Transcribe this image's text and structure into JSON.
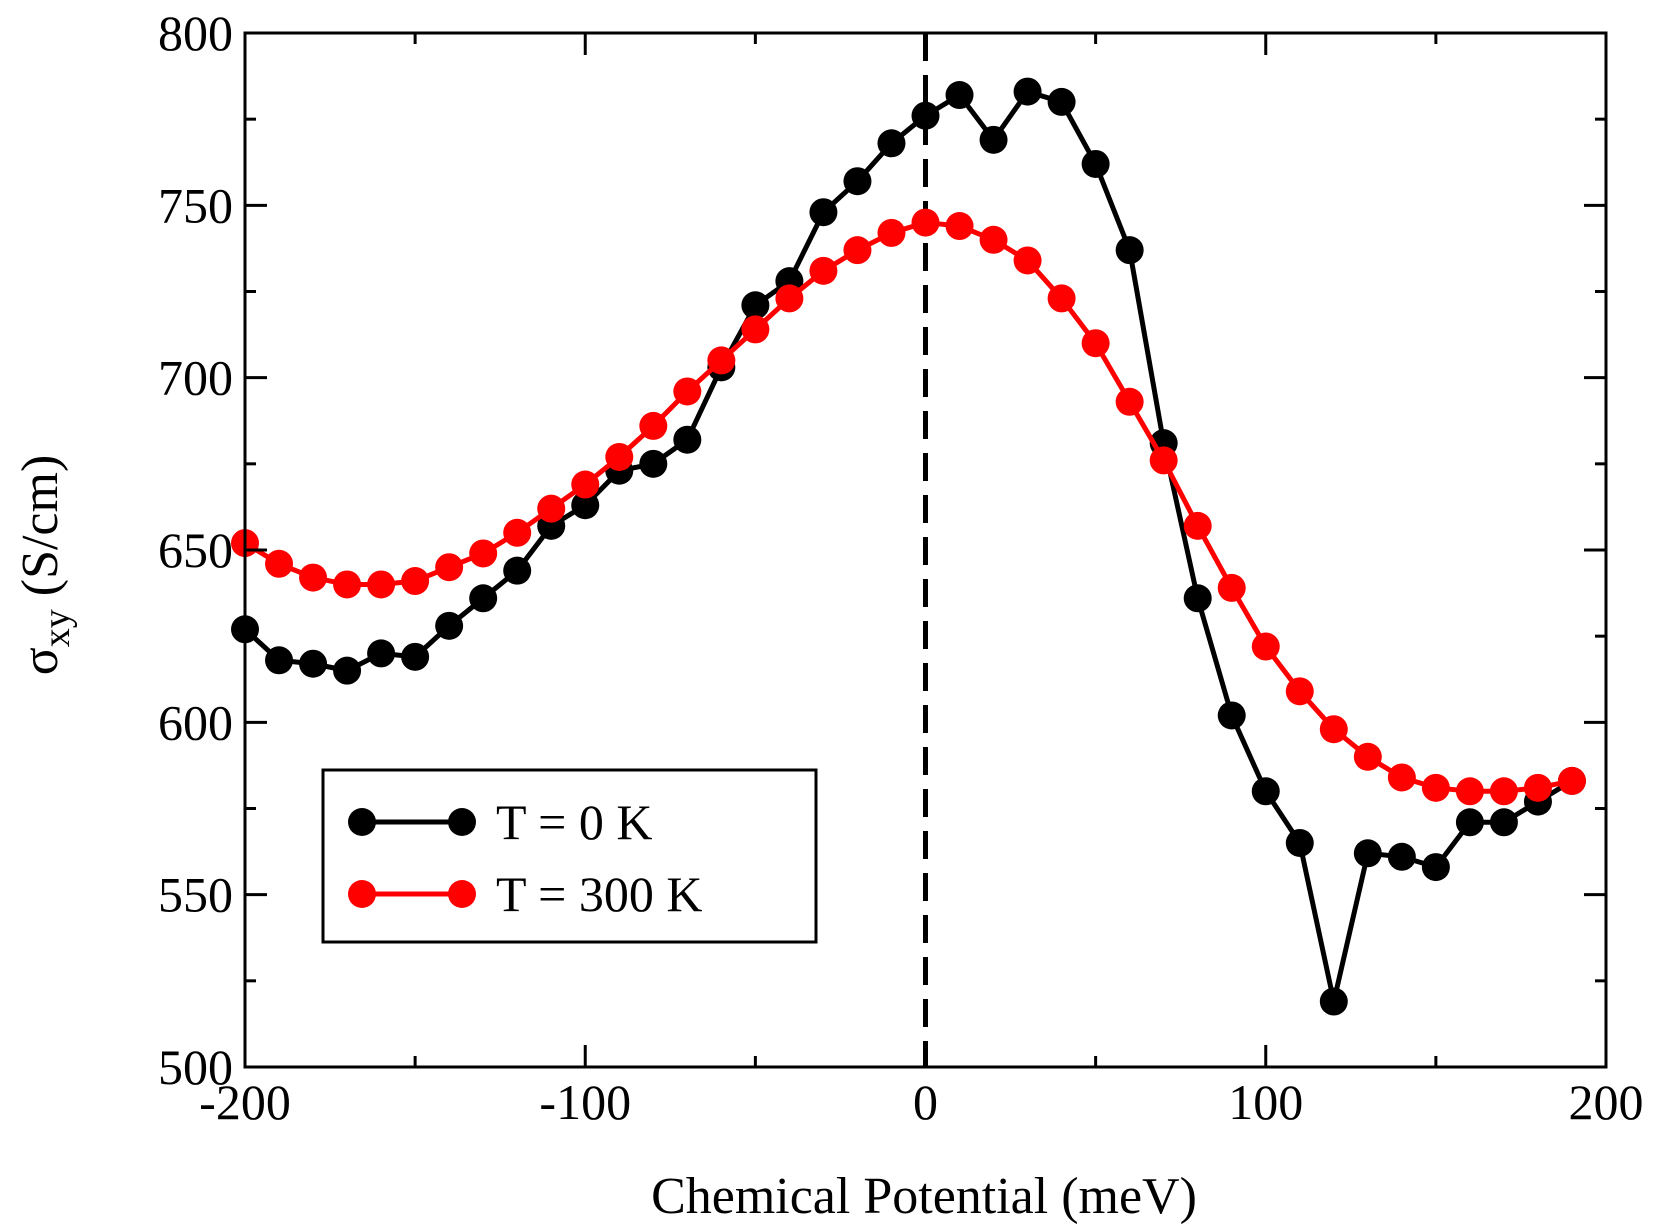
{
  "chart_data": {
    "type": "line",
    "title": "",
    "xlabel": "Chemical Potential (meV)",
    "ylabel": {
      "symbol": "σ",
      "subscript": "xy",
      "unit": " (S/cm)"
    },
    "xlim": [
      -200,
      200
    ],
    "ylim": [
      500,
      800
    ],
    "x_major_ticks": [
      -200,
      -100,
      0,
      100,
      200
    ],
    "x_tick_labels": [
      "-200",
      "-100",
      "0",
      "100",
      "200"
    ],
    "x_minor_step": 50,
    "y_major_ticks": [
      500,
      550,
      600,
      650,
      700,
      750,
      800
    ],
    "y_tick_labels": [
      "500",
      "550",
      "600",
      "650",
      "700",
      "750",
      "800"
    ],
    "y_minor_step": 25,
    "grid": false,
    "reference_line": {
      "x": 0,
      "style": "dashed",
      "color": "#000000"
    },
    "legend_position": "bottom-left",
    "x": [
      -200,
      -190,
      -180,
      -170,
      -160,
      -150,
      -140,
      -130,
      -120,
      -110,
      -100,
      -90,
      -80,
      -70,
      -60,
      -50,
      -40,
      -30,
      -20,
      -10,
      0,
      10,
      20,
      30,
      40,
      50,
      60,
      70,
      80,
      90,
      100,
      110,
      120,
      130,
      140,
      150,
      160,
      170,
      180,
      190
    ],
    "series": [
      {
        "name": "T = 0 K",
        "color": "#000000",
        "values": [
          627,
          618,
          617,
          615,
          620,
          619,
          628,
          636,
          644,
          657,
          663,
          673,
          675,
          682,
          703,
          721,
          728,
          748,
          757,
          768,
          776,
          782,
          769,
          783,
          780,
          762,
          737,
          681,
          636,
          602,
          580,
          565,
          519,
          562,
          561,
          558,
          571,
          571,
          577,
          583
        ]
      },
      {
        "name": "T = 300 K",
        "color": "#ff0000",
        "values": [
          652,
          646,
          642,
          640,
          640,
          641,
          645,
          649,
          655,
          662,
          669,
          677,
          686,
          696,
          705,
          714,
          723,
          731,
          737,
          742,
          745,
          744,
          740,
          734,
          723,
          710,
          693,
          676,
          657,
          639,
          622,
          609,
          598,
          590,
          584,
          581,
          580,
          580,
          581,
          583
        ]
      }
    ]
  }
}
